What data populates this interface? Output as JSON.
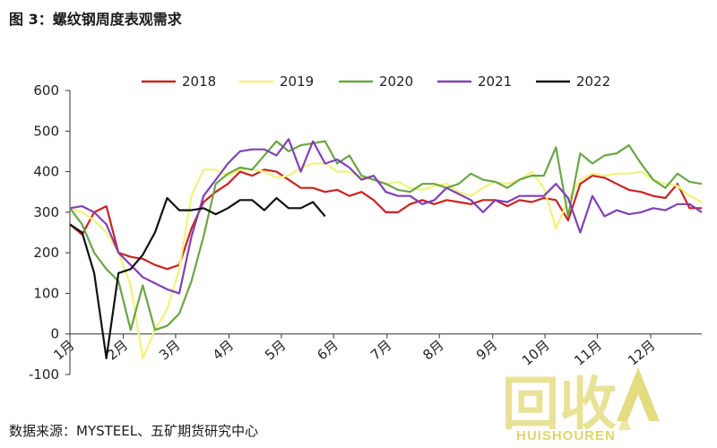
{
  "figure_title": "图 3：螺纹钢周度表观需求",
  "source": "数据来源：MYSTEEL、五矿期货研究中心",
  "watermark": {
    "cn": "回收",
    "en": "HUISHOUREN",
    "color": "#d9cf52"
  },
  "chart_data": {
    "type": "line",
    "title": "",
    "xlabel": "",
    "ylabel": "",
    "ylim": [
      -100,
      600
    ],
    "yticks": [
      -100,
      0,
      100,
      200,
      300,
      400,
      500,
      600
    ],
    "x_domain": [
      1,
      53
    ],
    "xticks": [
      {
        "label": "1月",
        "x": 1
      },
      {
        "label": "2月",
        "x": 5.4
      },
      {
        "label": "3月",
        "x": 9.7
      },
      {
        "label": "4月",
        "x": 14.1
      },
      {
        "label": "5月",
        "x": 18.4
      },
      {
        "label": "6月",
        "x": 22.7
      },
      {
        "label": "7月",
        "x": 27.1
      },
      {
        "label": "8月",
        "x": 31.4
      },
      {
        "label": "9月",
        "x": 35.8
      },
      {
        "label": "10月",
        "x": 40.1
      },
      {
        "label": "11月",
        "x": 44.4
      },
      {
        "label": "12月",
        "x": 48.8
      }
    ],
    "legend_position": "top",
    "series": [
      {
        "name": "2018",
        "color": "#cc2222",
        "values": [
          270,
          245,
          300,
          315,
          200,
          190,
          185,
          170,
          160,
          170,
          260,
          325,
          350,
          370,
          400,
          390,
          405,
          400,
          380,
          360,
          360,
          350,
          355,
          340,
          350,
          330,
          300,
          300,
          320,
          330,
          320,
          330,
          325,
          320,
          330,
          330,
          315,
          330,
          325,
          335,
          330,
          280,
          370,
          390,
          385,
          370,
          355,
          350,
          340,
          335,
          370,
          310,
          310
        ]
      },
      {
        "name": "2019",
        "color": "#f2f27a",
        "values": [
          310,
          300,
          280,
          250,
          200,
          120,
          -60,
          10,
          60,
          160,
          340,
          405,
          405,
          390,
          405,
          405,
          400,
          385,
          390,
          410,
          420,
          420,
          400,
          400,
          385,
          380,
          370,
          375,
          360,
          355,
          365,
          370,
          350,
          340,
          360,
          375,
          370,
          380,
          400,
          360,
          260,
          330,
          380,
          395,
          390,
          395,
          395,
          400,
          380,
          370,
          365,
          340,
          325
        ]
      },
      {
        "name": "2020",
        "color": "#6aa646",
        "values": [
          310,
          270,
          200,
          160,
          130,
          10,
          120,
          10,
          20,
          50,
          130,
          240,
          370,
          395,
          410,
          405,
          440,
          475,
          450,
          465,
          470,
          475,
          420,
          440,
          390,
          380,
          370,
          355,
          350,
          370,
          370,
          360,
          370,
          395,
          380,
          375,
          360,
          380,
          390,
          390,
          460,
          290,
          445,
          420,
          440,
          445,
          465,
          420,
          380,
          360,
          395,
          375,
          370
        ]
      },
      {
        "name": "2021",
        "color": "#8040b8",
        "values": [
          310,
          315,
          300,
          270,
          200,
          170,
          140,
          125,
          110,
          100,
          240,
          340,
          380,
          420,
          450,
          455,
          455,
          440,
          480,
          400,
          475,
          420,
          430,
          410,
          380,
          390,
          350,
          340,
          340,
          320,
          330,
          360,
          345,
          330,
          300,
          330,
          325,
          340,
          340,
          340,
          370,
          335,
          250,
          340,
          290,
          305,
          295,
          300,
          310,
          305,
          320,
          320,
          300
        ]
      },
      {
        "name": "2022",
        "color": "#111111",
        "values": [
          270,
          250,
          150,
          -60,
          150,
          160,
          195,
          250,
          335,
          305,
          305,
          310,
          295,
          310,
          330,
          330,
          305,
          335,
          310,
          310,
          325,
          290
        ]
      }
    ]
  }
}
